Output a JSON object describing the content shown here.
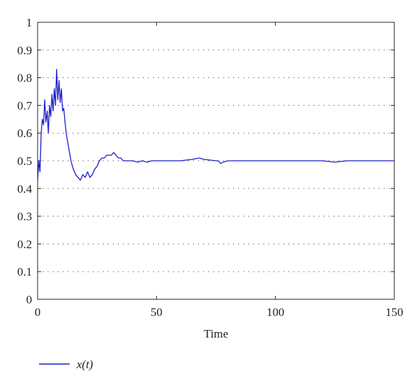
{
  "chart_data": {
    "type": "line",
    "title": "",
    "xlabel": "Time",
    "ylabel": "",
    "xlim": [
      0,
      150
    ],
    "ylim": [
      0,
      1
    ],
    "x_ticks": [
      0,
      50,
      100,
      150
    ],
    "y_ticks": [
      0,
      0.1,
      0.2,
      0.3,
      0.4,
      0.5,
      0.6,
      0.7,
      0.8,
      0.9,
      1
    ],
    "x_tick_labels": [
      "0",
      "50",
      "100",
      "150"
    ],
    "y_tick_labels": [
      "0",
      "0.1",
      "0.2",
      "0.3",
      "0.4",
      "0.5",
      "0.6",
      "0.7",
      "0.8",
      "0.9",
      "1"
    ],
    "grid": "horizontal-dotted",
    "legend_position": "bottom-left",
    "series": [
      {
        "name": "x(t)",
        "color": "#1a1acc",
        "x": [
          0,
          0.5,
          1,
          1.5,
          2,
          2.5,
          3,
          3.5,
          4,
          4.5,
          5,
          5.5,
          6,
          6.5,
          7,
          7.5,
          8,
          8.5,
          9,
          9.5,
          10,
          10.5,
          11,
          11.5,
          12,
          13,
          14,
          15,
          16,
          17,
          18,
          19,
          20,
          21,
          22,
          23,
          24,
          25,
          26,
          27,
          28,
          29,
          30,
          31,
          32,
          33,
          34,
          35,
          36,
          38,
          40,
          42,
          44,
          46,
          48,
          50,
          55,
          60,
          65,
          68,
          70,
          75,
          76,
          77,
          78,
          80,
          85,
          90,
          95,
          100,
          110,
          120,
          125,
          130,
          140,
          150
        ],
        "values": [
          0.43,
          0.5,
          0.46,
          0.6,
          0.65,
          0.63,
          0.72,
          0.64,
          0.68,
          0.6,
          0.7,
          0.66,
          0.74,
          0.68,
          0.76,
          0.7,
          0.83,
          0.72,
          0.79,
          0.71,
          0.76,
          0.68,
          0.69,
          0.64,
          0.6,
          0.55,
          0.5,
          0.47,
          0.45,
          0.44,
          0.43,
          0.45,
          0.44,
          0.46,
          0.44,
          0.45,
          0.47,
          0.48,
          0.5,
          0.51,
          0.51,
          0.52,
          0.52,
          0.52,
          0.53,
          0.52,
          0.51,
          0.51,
          0.5,
          0.5,
          0.5,
          0.495,
          0.5,
          0.495,
          0.5,
          0.5,
          0.5,
          0.5,
          0.505,
          0.51,
          0.505,
          0.5,
          0.5,
          0.49,
          0.495,
          0.5,
          0.5,
          0.5,
          0.5,
          0.5,
          0.5,
          0.5,
          0.495,
          0.5,
          0.5,
          0.5
        ]
      }
    ]
  }
}
